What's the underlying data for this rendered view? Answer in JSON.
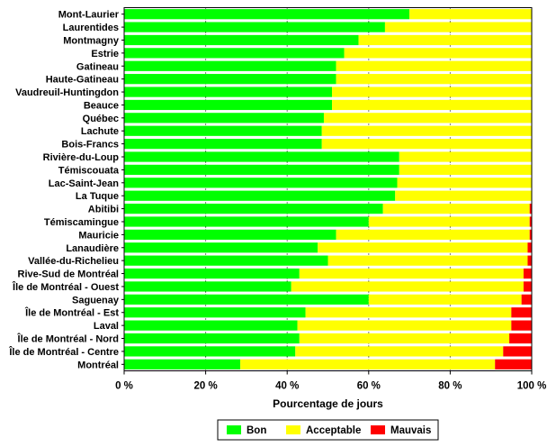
{
  "chart_data": {
    "type": "bar",
    "orientation": "horizontal",
    "stacked": true,
    "xlabel": "Pourcentage de jours",
    "xlim": [
      0,
      100
    ],
    "xticks": [
      "0 %",
      "20 %",
      "40 %",
      "60 %",
      "80 %",
      "100 %"
    ],
    "grid": "vertical",
    "legend_position": "bottom",
    "categories": [
      "Mont-Laurier",
      "Laurentides",
      "Montmagny",
      "Estrie",
      "Gatineau",
      "Haute-Gatineau",
      "Vaudreuil-Huntingdon",
      "Beauce",
      "Québec",
      "Lachute",
      "Bois-Francs",
      "Rivière-du-Loup",
      "Témiscouata",
      "Lac-Saint-Jean",
      "La Tuque",
      "Abitibi",
      "Témiscamingue",
      "Mauricie",
      "Lanaudière",
      "Vallée-du-Richelieu",
      "Rive-Sud de Montréal",
      "Île de Montréal - Ouest",
      "Saguenay",
      "Île de Montréal - Est",
      "Laval",
      "Île de Montréal - Nord",
      "Île de Montréal - Centre",
      "Montréal"
    ],
    "series": [
      {
        "name": "Bon",
        "color": "#00ff00",
        "values": [
          70,
          64,
          57.5,
          54,
          52,
          52,
          51,
          51,
          49,
          48.5,
          48.5,
          67.5,
          67.5,
          67,
          66.5,
          63.5,
          60,
          52,
          47.5,
          50,
          43,
          41,
          60,
          44.5,
          42.5,
          43,
          42,
          28.5
        ]
      },
      {
        "name": "Acceptable",
        "color": "#ffff00",
        "values": [
          30,
          36,
          42.5,
          46,
          48,
          48,
          49,
          49,
          51,
          51.5,
          51.5,
          32.5,
          32.5,
          33,
          33.5,
          36,
          39.5,
          47.5,
          51.5,
          49,
          55,
          57,
          37.5,
          50.5,
          52.5,
          51.5,
          51,
          62.5
        ]
      },
      {
        "name": "Mauvais",
        "color": "#ff0000",
        "values": [
          0,
          0,
          0,
          0,
          0,
          0,
          0,
          0,
          0,
          0,
          0,
          0,
          0,
          0,
          0,
          0.5,
          0.5,
          0.5,
          1,
          1,
          2,
          2,
          2.5,
          5,
          5,
          5.5,
          7,
          9
        ]
      }
    ]
  }
}
